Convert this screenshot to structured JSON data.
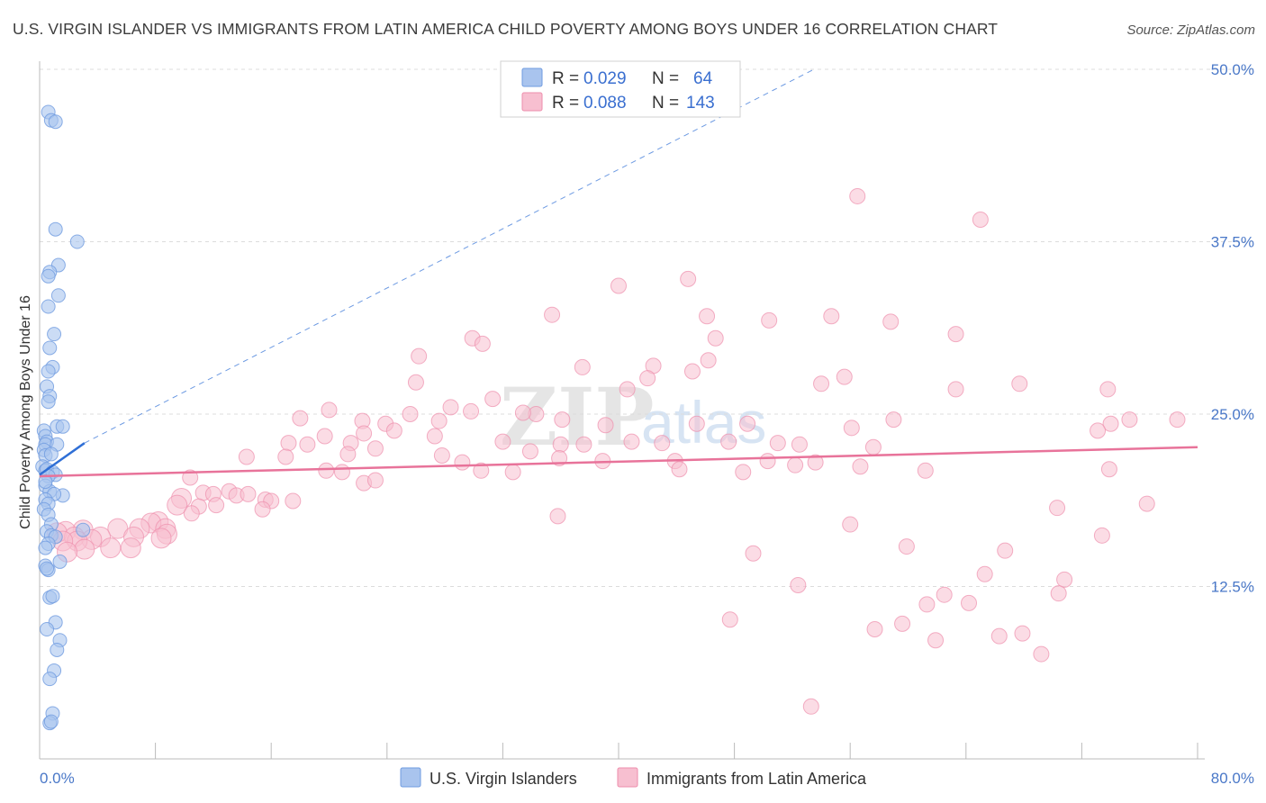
{
  "title": "U.S. VIRGIN ISLANDER VS IMMIGRANTS FROM LATIN AMERICA CHILD POVERTY AMONG BOYS UNDER 16 CORRELATION CHART",
  "source": "Source: ZipAtlas.com",
  "watermark": {
    "zip": "ZIP",
    "atlas": "atlas"
  },
  "legend": {
    "rows": [
      {
        "r_label": "R =",
        "r_value": "0.029",
        "n_label": "N =",
        "n_value": "64",
        "color": "#a9c4ee",
        "stroke": "#6f9be0"
      },
      {
        "r_label": "R =",
        "r_value": "0.088",
        "n_label": "N =",
        "n_value": "143",
        "color": "#f7bfd0",
        "stroke": "#ee8eac"
      }
    ]
  },
  "bottom_legend": [
    {
      "label": "U.S. Virgin Islanders",
      "color": "#a9c4ee",
      "stroke": "#6f9be0"
    },
    {
      "label": "Immigrants from Latin America",
      "color": "#f7bfd0",
      "stroke": "#ee8eac"
    }
  ],
  "chart_data": {
    "type": "scatter",
    "title": "U.S. VIRGIN ISLANDER VS IMMIGRANTS FROM LATIN AMERICA CHILD POVERTY AMONG BOYS UNDER 16 CORRELATION CHART",
    "xlabel": "",
    "ylabel": "Child Poverty Among Boys Under 16",
    "xlim": [
      0,
      80
    ],
    "ylim": [
      0,
      50
    ],
    "x_tick_labels": [
      "0.0%",
      "80.0%"
    ],
    "y_ticks": [
      12.5,
      25.0,
      37.5,
      50.0
    ],
    "y_tick_labels": [
      "12.5%",
      "25.0%",
      "37.5%",
      "50.0%"
    ],
    "colors": {
      "blue": "#4a78c8",
      "blue_line": "#2f6fd6",
      "pink_line": "#e8739a"
    },
    "series": [
      {
        "name": "U.S. Virgin Islanders",
        "trend": {
          "x": [
            0,
            3.1
          ],
          "y": [
            20.6,
            22.9
          ]
        },
        "trend_extended": {
          "x": [
            3.1,
            53.5
          ],
          "y": [
            22.9,
            50.0
          ]
        },
        "points": [
          [
            0.6,
            46.9
          ],
          [
            0.8,
            46.3
          ],
          [
            1.1,
            46.2
          ],
          [
            1.1,
            38.4
          ],
          [
            2.6,
            37.5
          ],
          [
            1.3,
            35.8
          ],
          [
            0.7,
            35.3
          ],
          [
            0.6,
            35.0
          ],
          [
            1.3,
            33.6
          ],
          [
            0.6,
            32.8
          ],
          [
            1.0,
            30.8
          ],
          [
            0.7,
            29.8
          ],
          [
            0.9,
            28.4
          ],
          [
            0.6,
            28.1
          ],
          [
            0.5,
            27.0
          ],
          [
            0.7,
            26.3
          ],
          [
            0.6,
            25.9
          ],
          [
            1.2,
            24.1
          ],
          [
            1.6,
            24.1
          ],
          [
            0.3,
            23.8
          ],
          [
            0.4,
            23.4
          ],
          [
            0.5,
            23.0
          ],
          [
            0.4,
            22.8
          ],
          [
            1.2,
            22.8
          ],
          [
            0.3,
            22.4
          ],
          [
            0.4,
            22.0
          ],
          [
            0.8,
            22.1
          ],
          [
            0.2,
            21.2
          ],
          [
            0.4,
            20.9
          ],
          [
            0.5,
            21.0
          ],
          [
            0.9,
            20.8
          ],
          [
            1.1,
            20.6
          ],
          [
            0.6,
            20.5
          ],
          [
            0.4,
            19.8
          ],
          [
            0.7,
            19.4
          ],
          [
            1.6,
            19.1
          ],
          [
            1.0,
            19.2
          ],
          [
            0.4,
            18.8
          ],
          [
            0.6,
            18.5
          ],
          [
            0.3,
            18.1
          ],
          [
            0.6,
            17.7
          ],
          [
            0.8,
            17.0
          ],
          [
            3.0,
            16.6
          ],
          [
            0.5,
            16.5
          ],
          [
            0.8,
            16.2
          ],
          [
            1.1,
            16.1
          ],
          [
            0.6,
            15.6
          ],
          [
            0.4,
            15.3
          ],
          [
            1.4,
            14.3
          ],
          [
            0.4,
            14.0
          ],
          [
            0.6,
            13.7
          ],
          [
            0.5,
            13.8
          ],
          [
            0.7,
            11.7
          ],
          [
            0.9,
            11.8
          ],
          [
            1.1,
            9.9
          ],
          [
            0.5,
            9.4
          ],
          [
            1.4,
            8.6
          ],
          [
            1.2,
            7.9
          ],
          [
            1.0,
            6.4
          ],
          [
            0.7,
            5.8
          ],
          [
            0.9,
            3.3
          ],
          [
            0.7,
            2.6
          ],
          [
            0.8,
            2.7
          ],
          [
            0.4,
            20.1
          ]
        ]
      },
      {
        "name": "Immigrants from Latin America",
        "trend": {
          "x": [
            0,
            80
          ],
          "y": [
            20.5,
            22.6
          ]
        },
        "points": [
          [
            56.5,
            40.8
          ],
          [
            65.0,
            39.1
          ],
          [
            40.0,
            34.3
          ],
          [
            44.8,
            34.8
          ],
          [
            35.4,
            32.2
          ],
          [
            46.1,
            32.1
          ],
          [
            50.4,
            31.8
          ],
          [
            54.7,
            32.1
          ],
          [
            58.8,
            31.7
          ],
          [
            63.3,
            30.8
          ],
          [
            46.7,
            30.5
          ],
          [
            29.9,
            30.5
          ],
          [
            30.6,
            30.1
          ],
          [
            26.2,
            29.2
          ],
          [
            46.2,
            28.9
          ],
          [
            37.5,
            28.4
          ],
          [
            42.4,
            28.5
          ],
          [
            45.1,
            28.1
          ],
          [
            26.0,
            27.3
          ],
          [
            42.0,
            27.6
          ],
          [
            40.6,
            26.8
          ],
          [
            54.0,
            27.2
          ],
          [
            55.6,
            27.7
          ],
          [
            63.3,
            26.8
          ],
          [
            67.7,
            27.2
          ],
          [
            73.8,
            26.8
          ],
          [
            20.0,
            25.3
          ],
          [
            28.4,
            25.5
          ],
          [
            31.3,
            26.1
          ],
          [
            29.8,
            25.2
          ],
          [
            34.3,
            25.0
          ],
          [
            36.1,
            24.6
          ],
          [
            23.9,
            24.3
          ],
          [
            25.6,
            25.0
          ],
          [
            27.6,
            24.5
          ],
          [
            22.3,
            24.5
          ],
          [
            33.4,
            25.1
          ],
          [
            39.1,
            24.2
          ],
          [
            45.4,
            24.3
          ],
          [
            48.9,
            24.3
          ],
          [
            56.1,
            24.0
          ],
          [
            59.0,
            24.6
          ],
          [
            74.0,
            24.3
          ],
          [
            75.3,
            24.6
          ],
          [
            73.1,
            23.8
          ],
          [
            78.6,
            24.6
          ],
          [
            18.0,
            24.7
          ],
          [
            24.5,
            23.8
          ],
          [
            22.4,
            23.6
          ],
          [
            19.7,
            23.4
          ],
          [
            27.3,
            23.4
          ],
          [
            32.0,
            23.0
          ],
          [
            36.0,
            22.8
          ],
          [
            37.6,
            22.8
          ],
          [
            40.9,
            23.0
          ],
          [
            43.0,
            22.9
          ],
          [
            47.6,
            23.0
          ],
          [
            51.0,
            22.9
          ],
          [
            17.2,
            22.9
          ],
          [
            18.5,
            22.8
          ],
          [
            21.5,
            22.9
          ],
          [
            23.2,
            22.5
          ],
          [
            33.9,
            22.3
          ],
          [
            52.5,
            22.8
          ],
          [
            57.6,
            22.6
          ],
          [
            14.3,
            21.9
          ],
          [
            17.0,
            21.9
          ],
          [
            21.3,
            22.1
          ],
          [
            27.8,
            22.0
          ],
          [
            29.2,
            21.5
          ],
          [
            35.9,
            21.8
          ],
          [
            38.9,
            21.6
          ],
          [
            43.9,
            21.6
          ],
          [
            50.3,
            21.6
          ],
          [
            52.2,
            21.3
          ],
          [
            53.6,
            21.5
          ],
          [
            44.2,
            21.0
          ],
          [
            48.6,
            20.8
          ],
          [
            56.7,
            21.2
          ],
          [
            61.2,
            20.9
          ],
          [
            73.9,
            21.0
          ],
          [
            19.8,
            20.9
          ],
          [
            20.9,
            20.8
          ],
          [
            30.5,
            20.9
          ],
          [
            32.7,
            20.8
          ],
          [
            10.4,
            20.4
          ],
          [
            11.3,
            19.3
          ],
          [
            12.0,
            19.2
          ],
          [
            13.1,
            19.4
          ],
          [
            13.6,
            19.1
          ],
          [
            14.4,
            19.2
          ],
          [
            15.6,
            18.8
          ],
          [
            16.0,
            18.7
          ],
          [
            17.5,
            18.7
          ],
          [
            22.4,
            20.0
          ],
          [
            23.2,
            20.2
          ],
          [
            9.8,
            18.9
          ],
          [
            11.0,
            18.3
          ],
          [
            12.2,
            18.4
          ],
          [
            15.4,
            18.1
          ],
          [
            9.5,
            18.4
          ],
          [
            10.5,
            17.8
          ],
          [
            8.2,
            17.2
          ],
          [
            7.7,
            17.1
          ],
          [
            6.9,
            16.7
          ],
          [
            8.7,
            16.7
          ],
          [
            5.4,
            16.7
          ],
          [
            3.0,
            16.6
          ],
          [
            1.8,
            16.5
          ],
          [
            1.2,
            16.4
          ],
          [
            2.4,
            16.1
          ],
          [
            4.2,
            16.1
          ],
          [
            6.5,
            16.1
          ],
          [
            8.8,
            16.3
          ],
          [
            8.4,
            16.0
          ],
          [
            3.6,
            15.9
          ],
          [
            2.6,
            15.8
          ],
          [
            1.6,
            15.8
          ],
          [
            4.9,
            15.3
          ],
          [
            6.3,
            15.3
          ],
          [
            3.1,
            15.2
          ],
          [
            1.9,
            15.0
          ],
          [
            35.8,
            17.6
          ],
          [
            56.0,
            17.0
          ],
          [
            70.3,
            18.2
          ],
          [
            76.5,
            18.5
          ],
          [
            59.9,
            15.4
          ],
          [
            66.7,
            15.1
          ],
          [
            73.4,
            16.2
          ],
          [
            49.3,
            14.9
          ],
          [
            65.3,
            13.4
          ],
          [
            70.8,
            13.0
          ],
          [
            52.4,
            12.6
          ],
          [
            62.5,
            11.9
          ],
          [
            70.4,
            12.0
          ],
          [
            61.3,
            11.2
          ],
          [
            64.2,
            11.3
          ],
          [
            47.7,
            10.1
          ],
          [
            57.7,
            9.4
          ],
          [
            59.6,
            9.8
          ],
          [
            66.3,
            8.9
          ],
          [
            67.9,
            9.1
          ],
          [
            61.9,
            8.6
          ],
          [
            69.2,
            7.6
          ],
          [
            53.3,
            3.8
          ]
        ]
      }
    ]
  },
  "yaxis_title": "Child Poverty Among Boys Under 16"
}
